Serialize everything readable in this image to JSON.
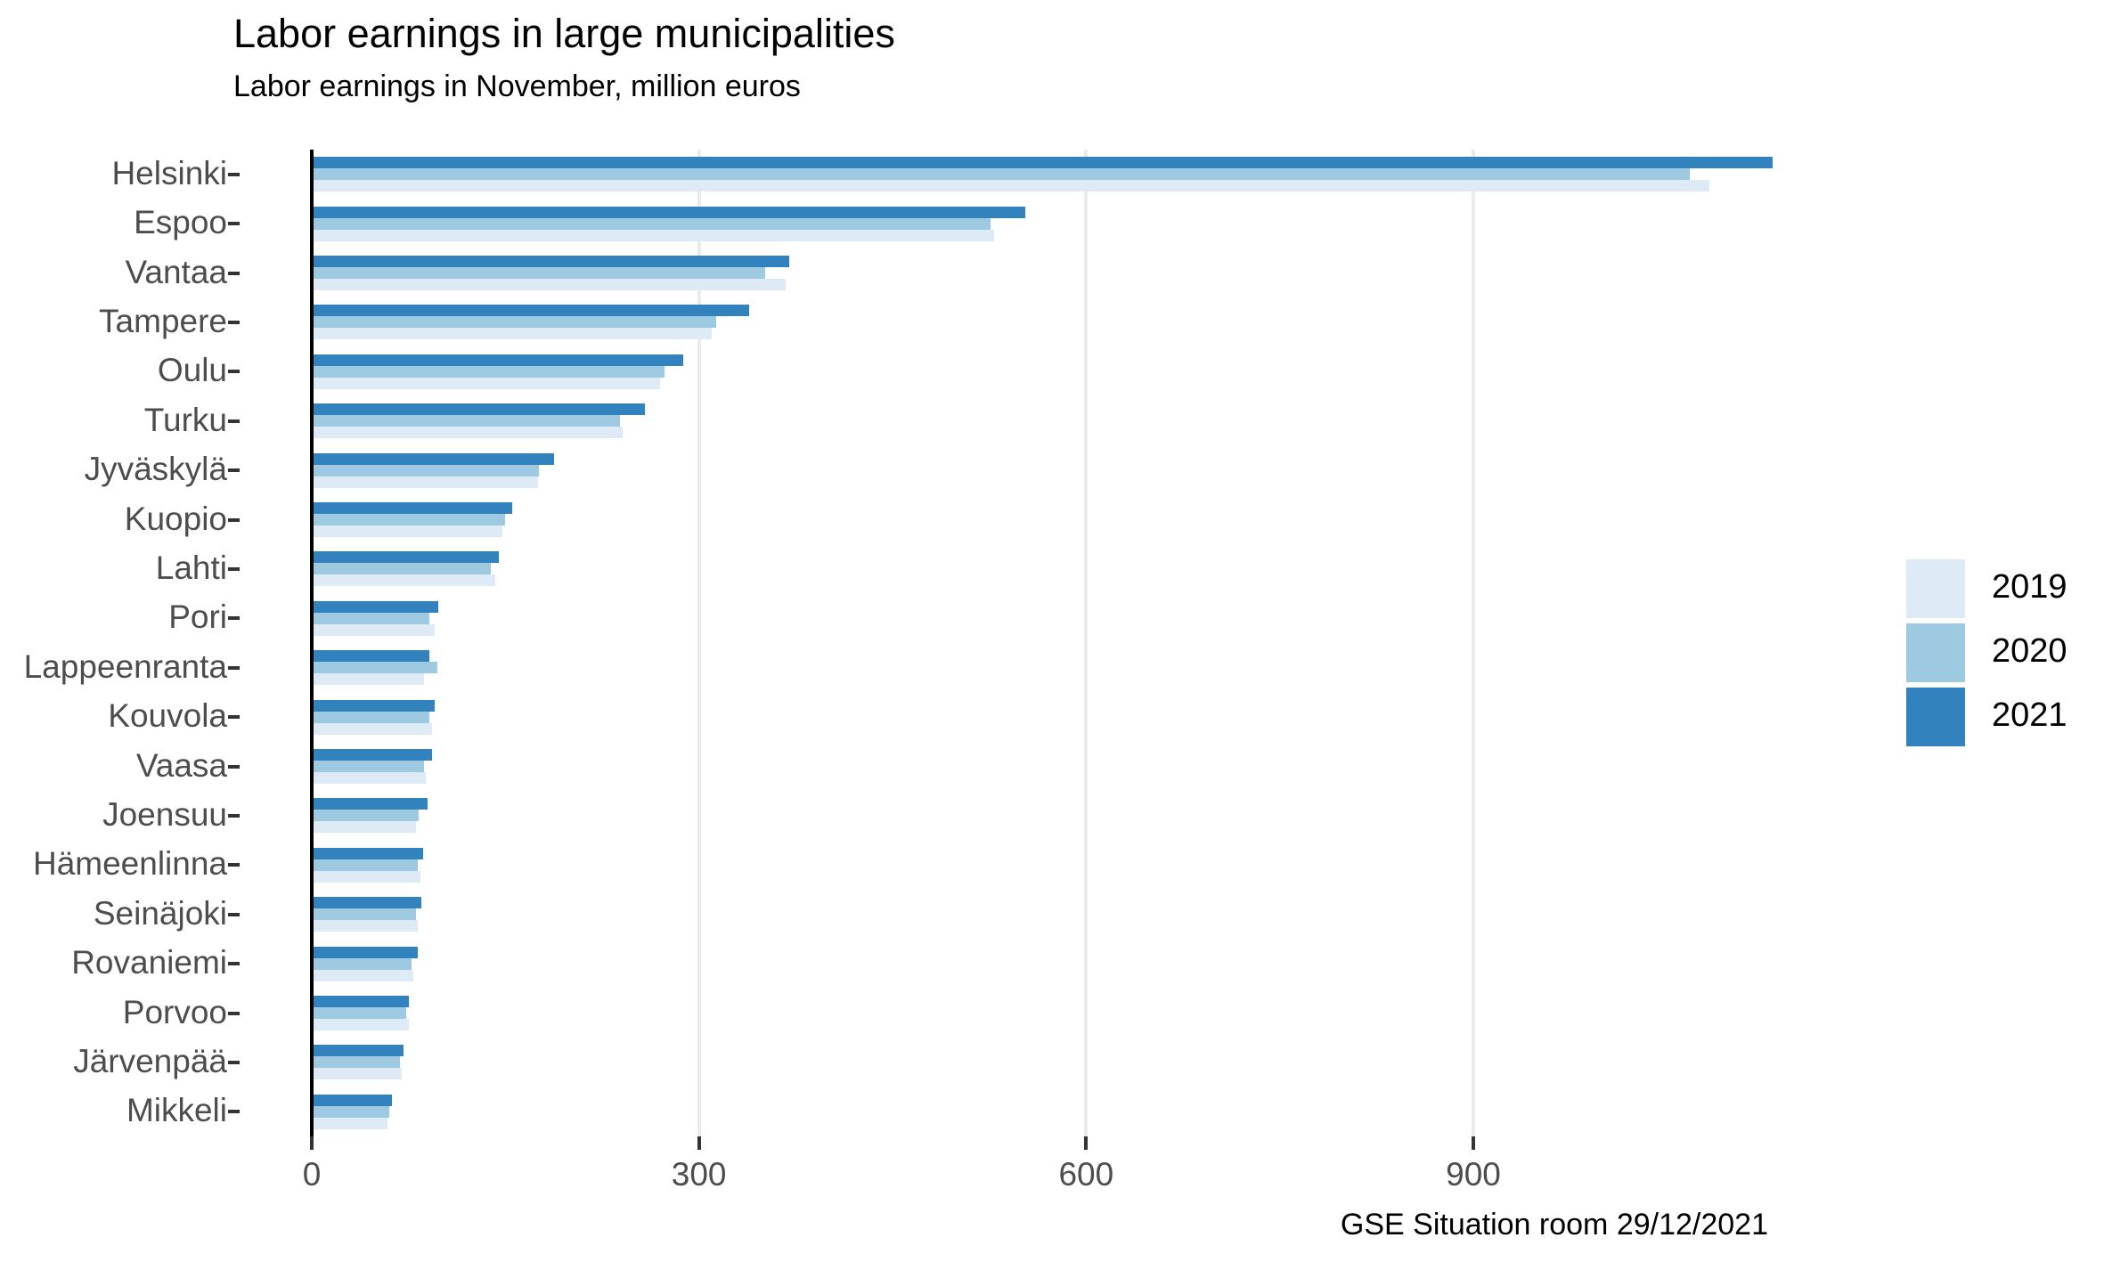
{
  "title": "Labor earnings in large municipalities",
  "subtitle": "Labor earnings in November, million euros",
  "caption": "GSE Situation room 29/12/2021",
  "legend": {
    "position": "right",
    "entries": [
      {
        "label": "2019",
        "color": "#deebf7"
      },
      {
        "label": "2020",
        "color": "#9ecae1"
      },
      {
        "label": "2021",
        "color": "#3182bd"
      }
    ]
  },
  "colors": {
    "series_2019": "#deebf7",
    "series_2020": "#9ecae1",
    "series_2021": "#3182bd",
    "gridline": "#ebebeb",
    "axis_text": "#4d4d4d",
    "axis_line": "#000000",
    "background": "#ffffff"
  },
  "chart_data": {
    "type": "bar",
    "orientation": "horizontal",
    "title": "Labor earnings in large municipalities",
    "subtitle": "Labor earnings in November, million euros",
    "caption": "GSE Situation room 29/12/2021",
    "xlabel": "",
    "ylabel": "",
    "unit": "million euros",
    "xlim": [
      0,
      1190
    ],
    "x_ticks": [
      0,
      300,
      600,
      900
    ],
    "grid": "major-x-only",
    "legend_position": "right",
    "bar_order_top_to_bottom": [
      "2021",
      "2020",
      "2019"
    ],
    "categories": [
      "Helsinki",
      "Espoo",
      "Vantaa",
      "Tampere",
      "Oulu",
      "Turku",
      "Jyväskylä",
      "Kuopio",
      "Lahti",
      "Pori",
      "Lappeenranta",
      "Kouvola",
      "Vaasa",
      "Joensuu",
      "Hämeenlinna",
      "Seinäjoki",
      "Rovaniemi",
      "Porvoo",
      "Järvenpää",
      "Mikkeli"
    ],
    "series": [
      {
        "name": "2019",
        "color": "#deebf7",
        "values": [
          1083,
          529,
          367,
          310,
          270,
          241,
          175,
          148,
          142,
          95,
          87,
          93,
          88,
          81,
          84,
          82,
          79,
          75,
          70,
          59
        ]
      },
      {
        "name": "2020",
        "color": "#9ecae1",
        "values": [
          1068,
          526,
          351,
          313,
          273,
          239,
          176,
          150,
          139,
          91,
          97,
          91,
          87,
          83,
          82,
          81,
          77,
          73,
          68,
          60
        ]
      },
      {
        "name": "2021",
        "color": "#3182bd",
        "values": [
          1132,
          553,
          370,
          339,
          288,
          258,
          188,
          155,
          145,
          98,
          91,
          95,
          93,
          90,
          86,
          85,
          82,
          75,
          71,
          62
        ]
      }
    ]
  }
}
